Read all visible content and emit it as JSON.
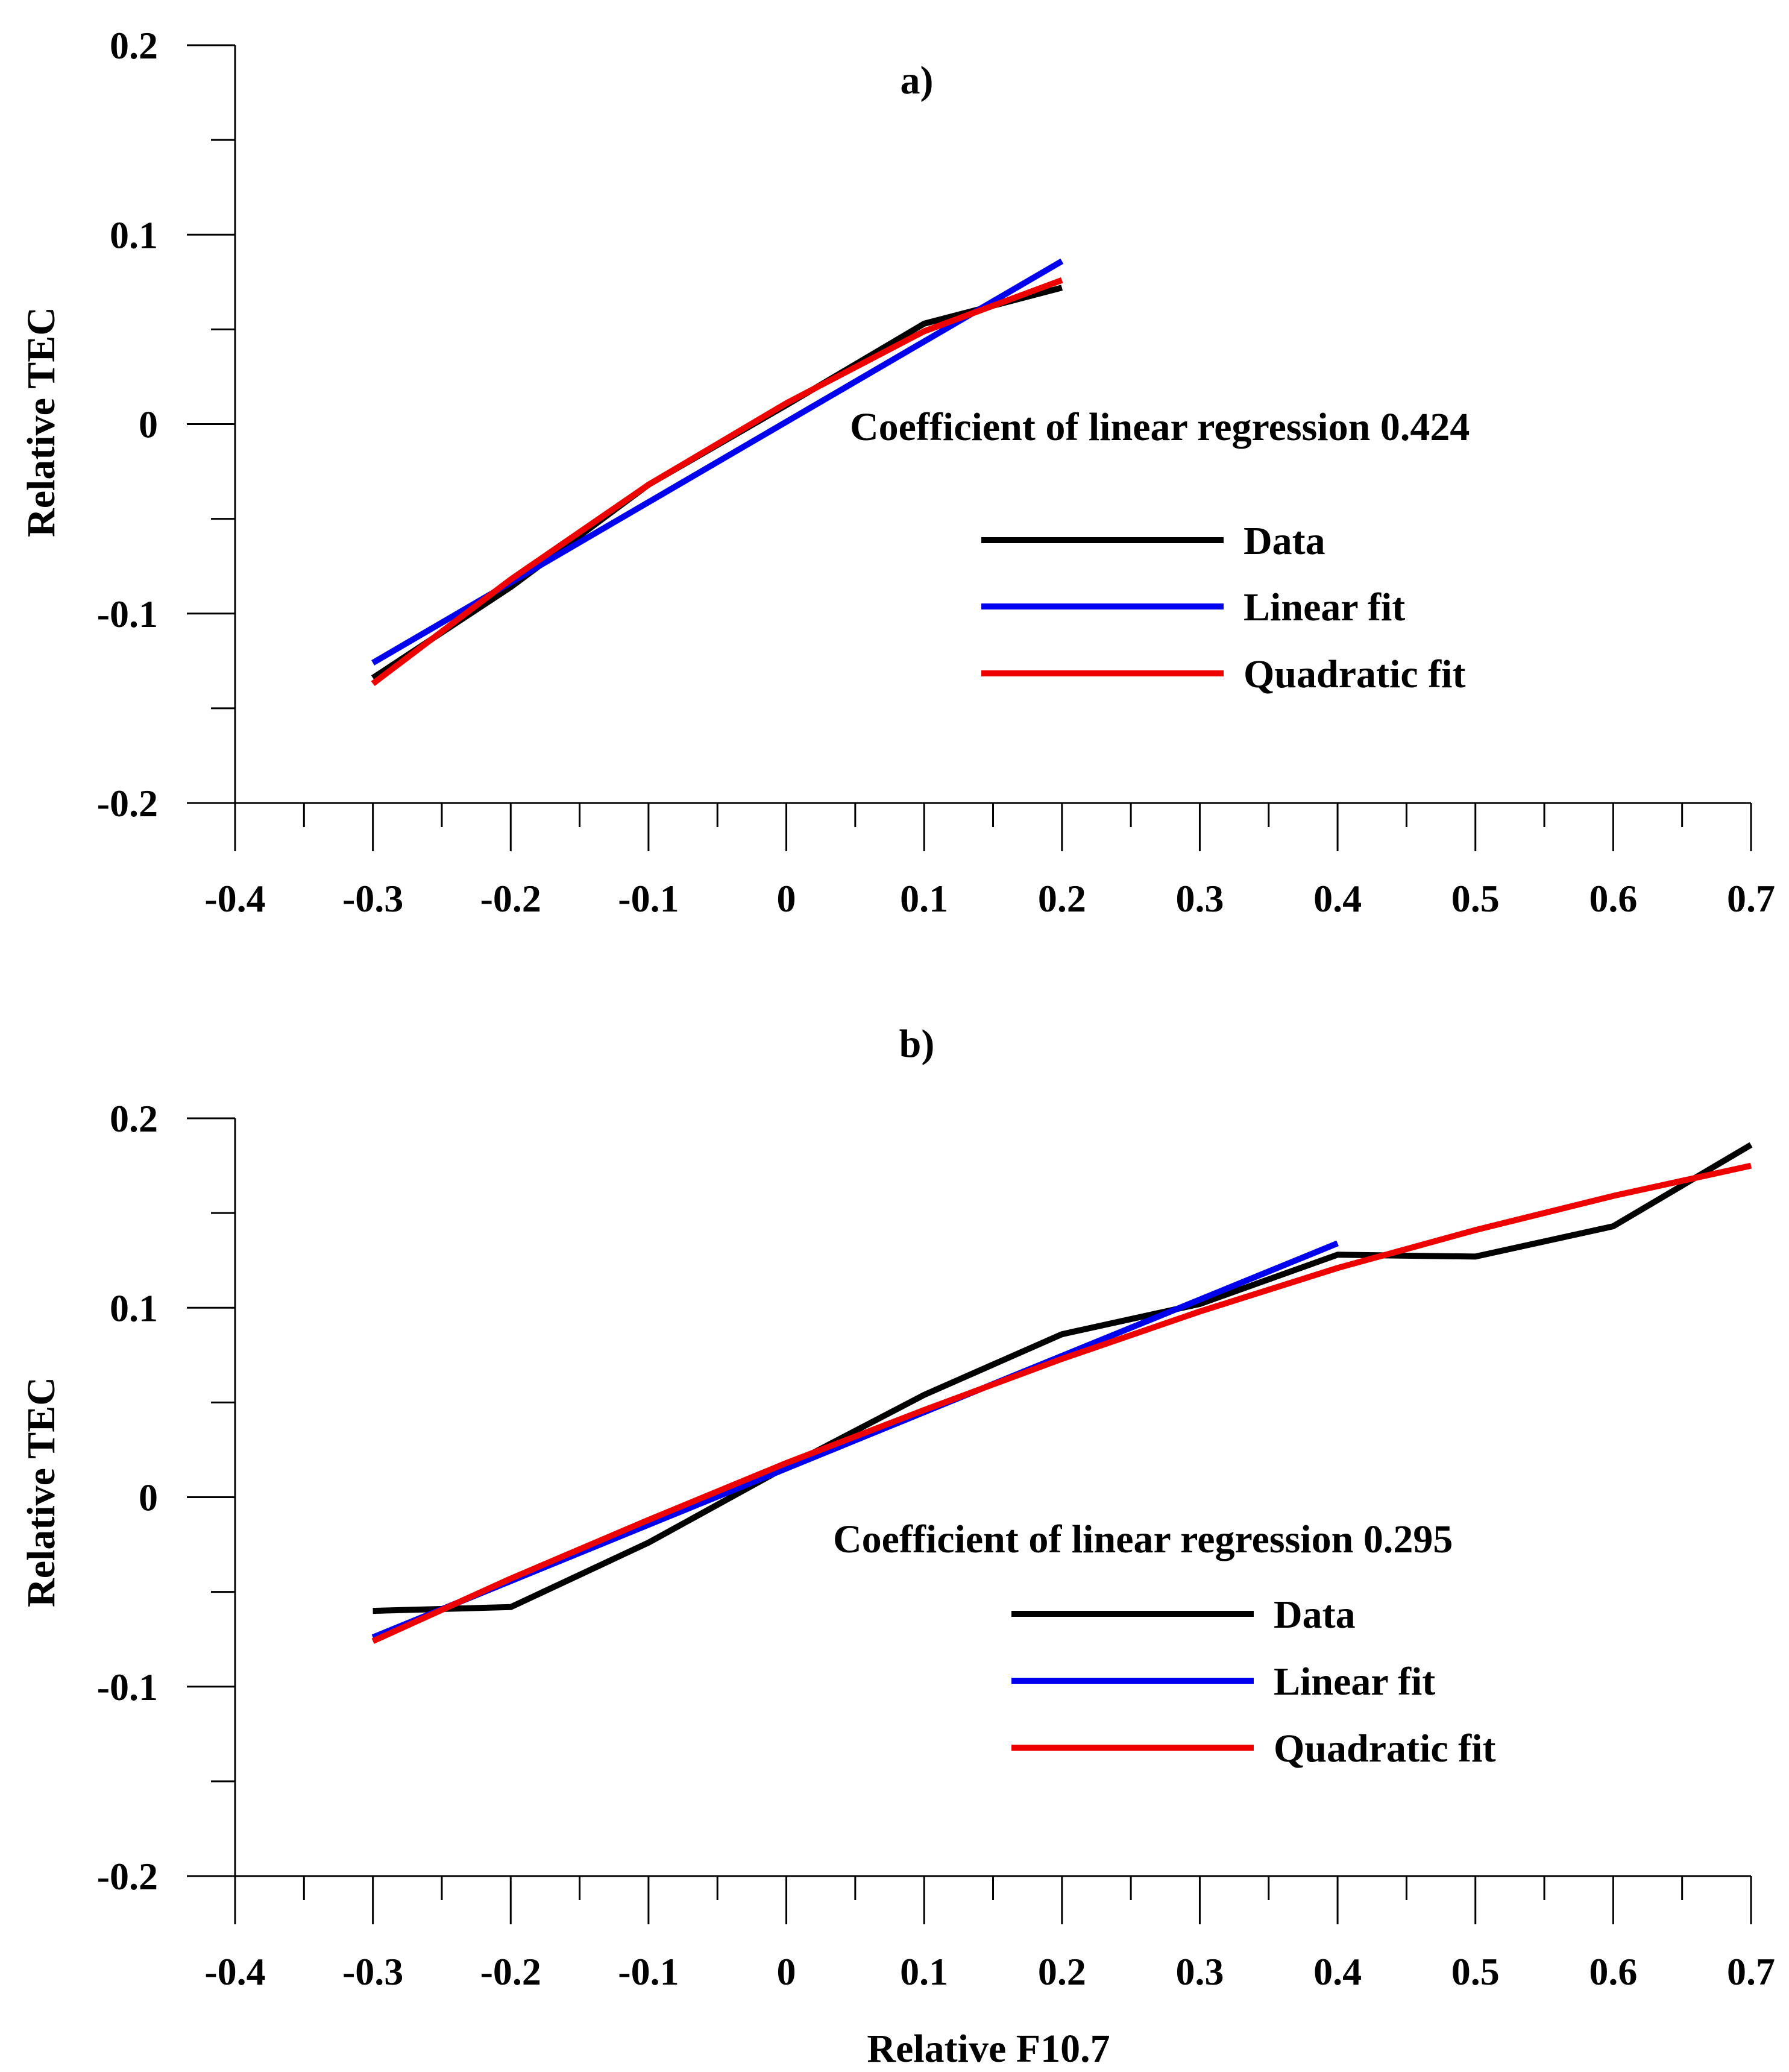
{
  "figure": {
    "xlabel": "Relative F10.7",
    "ylabel": "Relative TEC"
  },
  "chart_data": [
    {
      "type": "line",
      "title": "a)",
      "xlabel": "",
      "ylabel": "Relative TEC",
      "xlim": [
        -0.4,
        0.7
      ],
      "ylim": [
        -0.2,
        0.2
      ],
      "xticks": [
        "-0.4",
        "-0.3",
        "-0.2",
        "-0.1",
        "0",
        "0.1",
        "0.2",
        "0.3",
        "0.4",
        "0.5",
        "0.6",
        "0.7"
      ],
      "yticks": [
        "0.2",
        "0.1",
        "0",
        "-0.1",
        "-0.2"
      ],
      "annotation": "Coefficient of linear regression 0.424",
      "legend": [
        "Data",
        "Linear fit",
        "Quadratic fit"
      ],
      "series": [
        {
          "name": "Data",
          "color": "#000000",
          "x": [
            -0.3,
            -0.2,
            -0.1,
            0,
            0.1,
            0.2
          ],
          "y": [
            -0.134,
            -0.086,
            -0.032,
            0.01,
            0.053,
            0.072
          ]
        },
        {
          "name": "Linear fit",
          "color": "#0000ee",
          "x": [
            -0.3,
            0.2
          ],
          "y": [
            -0.126,
            0.086
          ]
        },
        {
          "name": "Quadratic fit",
          "color": "#ee0000",
          "x": [
            -0.3,
            -0.2,
            -0.1,
            0,
            0.1,
            0.2
          ],
          "y": [
            -0.137,
            -0.082,
            -0.032,
            0.011,
            0.049,
            0.076
          ]
        }
      ]
    },
    {
      "type": "line",
      "title": "b)",
      "xlabel": "Relative F10.7",
      "ylabel": "Relative TEC",
      "xlim": [
        -0.4,
        0.7
      ],
      "ylim": [
        -0.2,
        0.2
      ],
      "xticks": [
        "-0.4",
        "-0.3",
        "-0.2",
        "-0.1",
        "0",
        "0.1",
        "0.2",
        "0.3",
        "0.4",
        "0.5",
        "0.6",
        "0.7"
      ],
      "yticks": [
        "0.2",
        "0.1",
        "0",
        "-0.1",
        "-0.2"
      ],
      "annotation": "Coefficient of linear regression 0.295",
      "legend": [
        "Data",
        "Linear fit",
        "Quadratic fit"
      ],
      "series": [
        {
          "name": "Data",
          "color": "#000000",
          "x": [
            -0.3,
            -0.2,
            -0.1,
            0,
            0.1,
            0.2,
            0.3,
            0.4,
            0.5,
            0.6,
            0.7
          ],
          "y": [
            -0.06,
            -0.058,
            -0.024,
            0.016,
            0.054,
            0.086,
            0.102,
            0.128,
            0.127,
            0.143,
            0.186
          ]
        },
        {
          "name": "Linear fit",
          "color": "#0000ee",
          "x": [
            -0.3,
            0.4
          ],
          "y": [
            -0.074,
            0.134
          ]
        },
        {
          "name": "Quadratic fit",
          "color": "#ee0000",
          "x": [
            -0.3,
            -0.2,
            -0.1,
            0,
            0.1,
            0.2,
            0.3,
            0.4,
            0.5,
            0.6,
            0.7
          ],
          "y": [
            -0.076,
            -0.043,
            -0.012,
            0.018,
            0.046,
            0.073,
            0.098,
            0.121,
            0.141,
            0.159,
            0.175
          ]
        }
      ]
    }
  ]
}
